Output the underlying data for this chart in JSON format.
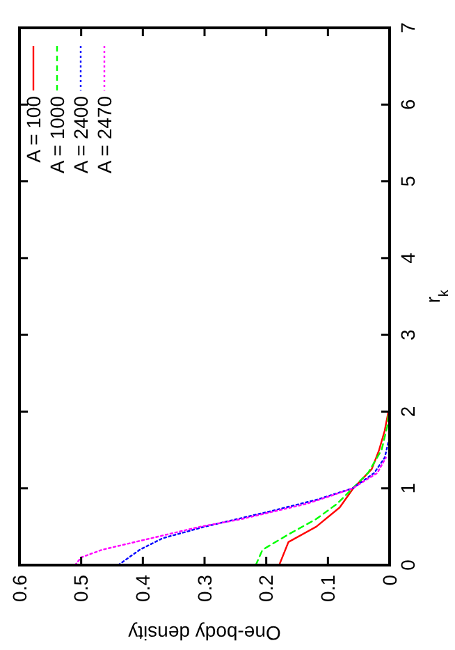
{
  "chart_data": {
    "type": "line",
    "xlabel": "One-body density",
    "ylabel": "r$_{k}$",
    "xlim": [
      0.6,
      0
    ],
    "xticks": [
      0,
      0.1,
      0.2,
      0.3,
      0.4,
      0.5,
      0.6
    ],
    "ylim": [
      0,
      7
    ],
    "yticks": [
      0,
      1,
      2,
      3,
      4,
      5,
      6,
      7
    ],
    "grid": false,
    "legend": "top left",
    "marker": "none",
    "series": [
      {
        "name": "A = 100",
        "color": "#ff0000",
        "line_style": "solid",
        "x": [
          0.179,
          0.164,
          0.119,
          0.081,
          0.059,
          0.029,
          0.017,
          0.008,
          0.002
        ],
        "values": [
          0,
          0.3,
          0.5,
          0.75,
          1,
          1.25,
          1.5,
          1.75,
          2
        ]
      },
      {
        "name": "A = 1000",
        "color": "#00ff00",
        "line_style": "dashed",
        "x": [
          0.217,
          0.206,
          0.164,
          0.119,
          0.085,
          0.06,
          0.035,
          0.013,
          0.004,
          0.001
        ],
        "values": [
          0,
          0.2,
          0.4,
          0.6,
          0.8,
          1,
          1.2,
          1.5,
          1.8,
          2
        ]
      },
      {
        "name": "A = 2400",
        "color": "#0000ff",
        "line_style": "dotted",
        "x": [
          0.44,
          0.405,
          0.368,
          0.3,
          0.194,
          0.119,
          0.06,
          0.025,
          0.008,
          0.002
        ],
        "values": [
          0,
          0.2,
          0.35,
          0.5,
          0.7,
          0.85,
          1,
          1.2,
          1.4,
          1.6
        ]
      },
      {
        "name": "A = 2470",
        "color": "#ff00ff",
        "line_style": "dotted",
        "x": [
          0.51,
          0.5,
          0.466,
          0.413,
          0.36,
          0.307,
          0.24,
          0.187,
          0.134,
          0.096,
          0.06,
          0.02,
          0.006
        ],
        "values": [
          0,
          0.1,
          0.2,
          0.3,
          0.4,
          0.5,
          0.6,
          0.7,
          0.8,
          0.9,
          1,
          1.2,
          1.4
        ]
      }
    ]
  }
}
